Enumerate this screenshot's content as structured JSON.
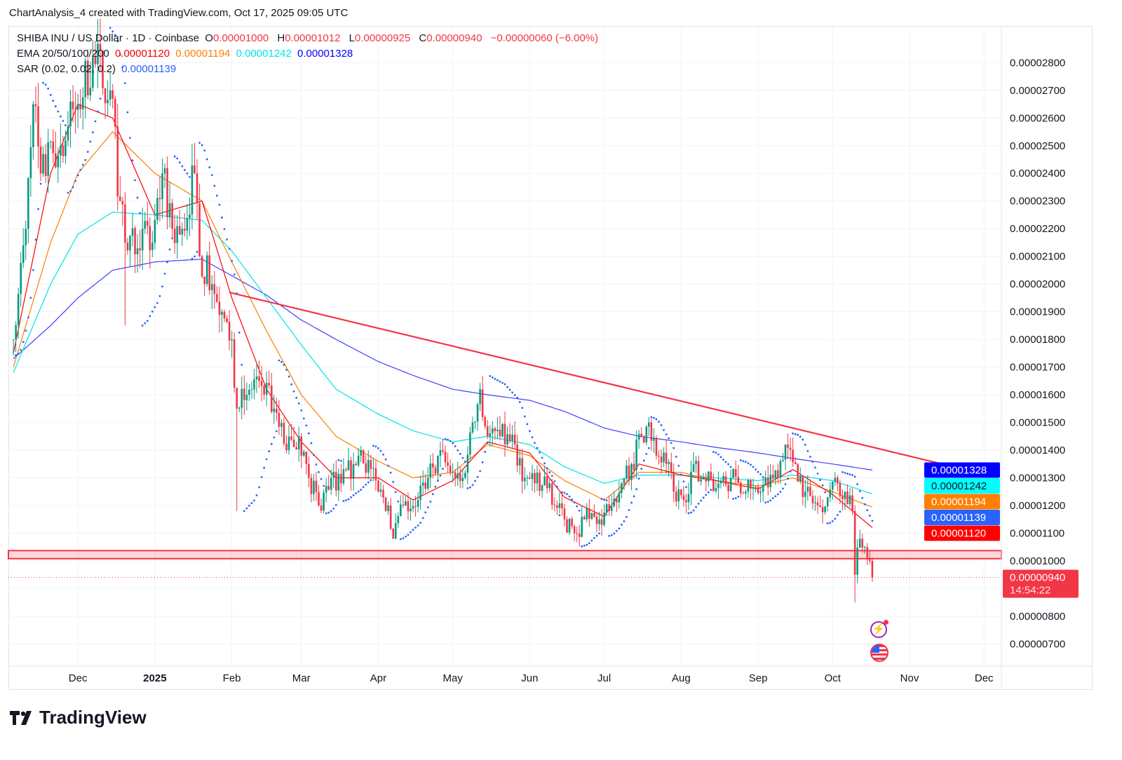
{
  "credit": "ChartAnalysis_4 created with TradingView.com, Oct 17, 2025 09:05 UTC",
  "legend": {
    "symbol": "SHIBA INU / US Dollar · 1D · Coinbase",
    "o_label": "O",
    "o": "0.00001000",
    "h_label": "H",
    "h": "0.00001012",
    "l_label": "L",
    "l": "0.00000925",
    "c_label": "C",
    "c": "0.00000940",
    "change": "−0.00000060 (−6.00%)",
    "ema_label": "EMA 20/50/100/200",
    "ema20": "0.00001120",
    "ema50": "0.00001194",
    "ema100": "0.00001242",
    "ema200": "0.00001328",
    "sar_label": "SAR (0.02, 0.02, 0.2)",
    "sar": "0.00001139"
  },
  "price_tags": [
    {
      "label": "0.00001328",
      "value": 1.328e-05,
      "bg": "#0000ff",
      "fg": "#ffffff"
    },
    {
      "label": "0.00001242",
      "value": 1.242e-05,
      "bg": "#00ffff",
      "fg": "#131722"
    },
    {
      "label": "0.00001194",
      "value": 1.194e-05,
      "bg": "#ff7f00",
      "fg": "#ffffff"
    },
    {
      "label": "0.00001139",
      "value": 1.139e-05,
      "bg": "#2962ff",
      "fg": "#ffffff"
    },
    {
      "label": "0.00001120",
      "value": 1.12e-05,
      "bg": "#ff0000",
      "fg": "#ffffff"
    }
  ],
  "last_price": {
    "label": "0.00000940",
    "countdown": "14:54:22",
    "value": 9.4e-06,
    "bg": "#f23645"
  },
  "logo_text": "TradingView",
  "colors": {
    "up": "#089981",
    "down": "#f23645",
    "ema20": "#ff0000",
    "ema50": "#ff7f00",
    "ema100": "#00e5e5",
    "ema200": "#3f3fff",
    "sar": "#2962ff",
    "trend": "#f23645"
  },
  "chart_data": {
    "type": "candlestick",
    "title": "SHIBA INU / US Dollar · 1D · Coinbase",
    "ylim": [
      6.2e-06,
      2.93e-05
    ],
    "yticks": [
      "0.00000700",
      "0.00000800",
      "0.00000900",
      "0.00001000",
      "0.00001100",
      "0.00001200",
      "0.00001300",
      "0.00001400",
      "0.00001500",
      "0.00001600",
      "0.00001700",
      "0.00001800",
      "0.00001900",
      "0.00002000",
      "0.00002100",
      "0.00002200",
      "0.00002300",
      "0.00002400",
      "0.00002500",
      "0.00002600",
      "0.00002700",
      "0.00002800"
    ],
    "ytick_labels_shown": [
      "0.00000700",
      "0.00000800",
      "0.00001000",
      "0.00001100",
      "0.00001200",
      "0.00001300",
      "0.00001400",
      "0.00001500",
      "0.00001600",
      "0.00001700",
      "0.00001800",
      "0.00001900",
      "0.00002000",
      "0.00002100",
      "0.00002200",
      "0.00002300",
      "0.00002400",
      "0.00002500",
      "0.00002600",
      "0.00002700",
      "0.00002800"
    ],
    "xlim": [
      "2024-11-03",
      "2025-12-08"
    ],
    "xticks": [
      {
        "date": "2024-12-01",
        "label": "Dec",
        "bold": false
      },
      {
        "date": "2025-01-01",
        "label": "2025",
        "bold": true
      },
      {
        "date": "2025-02-01",
        "label": "Feb",
        "bold": false
      },
      {
        "date": "2025-03-01",
        "label": "Mar",
        "bold": false
      },
      {
        "date": "2025-04-01",
        "label": "Apr",
        "bold": false
      },
      {
        "date": "2025-05-01",
        "label": "May",
        "bold": false
      },
      {
        "date": "2025-06-01",
        "label": "Jun",
        "bold": false
      },
      {
        "date": "2025-07-01",
        "label": "Jul",
        "bold": false
      },
      {
        "date": "2025-08-01",
        "label": "Aug",
        "bold": false
      },
      {
        "date": "2025-09-01",
        "label": "Sep",
        "bold": false
      },
      {
        "date": "2025-10-01",
        "label": "Oct",
        "bold": false
      },
      {
        "date": "2025-11-01",
        "label": "Nov",
        "bold": false
      },
      {
        "date": "2025-12-01",
        "label": "Dec",
        "bold": false
      }
    ],
    "close_keypoints_e8": [
      [
        "2024-11-05",
        1800
      ],
      [
        "2024-11-10",
        2200
      ],
      [
        "2024-11-13",
        2650
      ],
      [
        "2024-11-16",
        2400
      ],
      [
        "2024-11-24",
        2500
      ],
      [
        "2024-12-01",
        2650
      ],
      [
        "2024-12-07",
        2820
      ],
      [
        "2024-12-14",
        2700
      ],
      [
        "2024-12-18",
        2300
      ],
      [
        "2024-12-20",
        2150
      ],
      [
        "2024-12-27",
        2200
      ],
      [
        "2024-12-31",
        2150
      ],
      [
        "2025-01-04",
        2400
      ],
      [
        "2025-01-08",
        2200
      ],
      [
        "2025-01-12",
        2200
      ],
      [
        "2025-01-17",
        2400
      ],
      [
        "2025-01-19",
        2100
      ],
      [
        "2025-01-24",
        2000
      ],
      [
        "2025-01-28",
        1900
      ],
      [
        "2025-02-01",
        1800
      ],
      [
        "2025-02-03",
        1550
      ],
      [
        "2025-02-07",
        1600
      ],
      [
        "2025-02-12",
        1650
      ],
      [
        "2025-02-18",
        1550
      ],
      [
        "2025-02-23",
        1400
      ],
      [
        "2025-02-28",
        1450
      ],
      [
        "2025-03-04",
        1300
      ],
      [
        "2025-03-08",
        1200
      ],
      [
        "2025-03-13",
        1300
      ],
      [
        "2025-03-17",
        1280
      ],
      [
        "2025-03-22",
        1350
      ],
      [
        "2025-03-25",
        1400
      ],
      [
        "2025-04-01",
        1250
      ],
      [
        "2025-04-05",
        1200
      ],
      [
        "2025-04-07",
        1080
      ],
      [
        "2025-04-11",
        1200
      ],
      [
        "2025-04-17",
        1220
      ],
      [
        "2025-04-21",
        1300
      ],
      [
        "2025-04-25",
        1380
      ],
      [
        "2025-05-01",
        1320
      ],
      [
        "2025-05-05",
        1300
      ],
      [
        "2025-05-09",
        1500
      ],
      [
        "2025-05-12",
        1620
      ],
      [
        "2025-05-15",
        1450
      ],
      [
        "2025-05-20",
        1450
      ],
      [
        "2025-05-26",
        1420
      ],
      [
        "2025-05-30",
        1300
      ],
      [
        "2025-06-03",
        1280
      ],
      [
        "2025-06-09",
        1280
      ],
      [
        "2025-06-11",
        1200
      ],
      [
        "2025-06-15",
        1150
      ],
      [
        "2025-06-19",
        1100
      ],
      [
        "2025-06-23",
        1150
      ],
      [
        "2025-06-29",
        1150
      ],
      [
        "2025-07-03",
        1180
      ],
      [
        "2025-07-08",
        1280
      ],
      [
        "2025-07-12",
        1350
      ],
      [
        "2025-07-16",
        1450
      ],
      [
        "2025-07-19",
        1500
      ],
      [
        "2025-07-22",
        1380
      ],
      [
        "2025-07-26",
        1350
      ],
      [
        "2025-07-29",
        1250
      ],
      [
        "2025-08-02",
        1220
      ],
      [
        "2025-08-06",
        1350
      ],
      [
        "2025-08-10",
        1300
      ],
      [
        "2025-08-16",
        1280
      ],
      [
        "2025-08-21",
        1300
      ],
      [
        "2025-08-27",
        1250
      ],
      [
        "2025-09-02",
        1250
      ],
      [
        "2025-09-07",
        1300
      ],
      [
        "2025-09-12",
        1420
      ],
      [
        "2025-09-16",
        1350
      ],
      [
        "2025-09-20",
        1250
      ],
      [
        "2025-09-25",
        1200
      ],
      [
        "2025-09-29",
        1230
      ],
      [
        "2025-10-03",
        1280
      ],
      [
        "2025-10-06",
        1250
      ],
      [
        "2025-10-09",
        1180
      ],
      [
        "2025-10-10",
        950
      ],
      [
        "2025-10-12",
        1080
      ],
      [
        "2025-10-14",
        1050
      ],
      [
        "2025-10-16",
        1000
      ],
      [
        "2025-10-17",
        940
      ]
    ],
    "ema_keypoints_e8": {
      "dates": [
        "2024-11-05",
        "2024-11-20",
        "2024-12-01",
        "2024-12-15",
        "2025-01-01",
        "2025-01-20",
        "2025-02-01",
        "2025-02-15",
        "2025-03-01",
        "2025-03-15",
        "2025-04-01",
        "2025-04-15",
        "2025-05-01",
        "2025-05-15",
        "2025-06-01",
        "2025-06-15",
        "2025-07-01",
        "2025-07-15",
        "2025-08-01",
        "2025-08-15",
        "2025-09-01",
        "2025-09-15",
        "2025-10-01",
        "2025-10-17"
      ],
      "ema20": [
        1750,
        2400,
        2650,
        2600,
        2250,
        2300,
        1950,
        1620,
        1430,
        1300,
        1300,
        1220,
        1290,
        1430,
        1390,
        1230,
        1160,
        1350,
        1310,
        1290,
        1260,
        1330,
        1240,
        1120
      ],
      "ema50": [
        1700,
        2150,
        2400,
        2550,
        2400,
        2300,
        2080,
        1830,
        1600,
        1450,
        1360,
        1300,
        1320,
        1420,
        1380,
        1290,
        1220,
        1320,
        1320,
        1290,
        1270,
        1300,
        1250,
        1194
      ],
      "ema100": [
        1680,
        2000,
        2180,
        2260,
        2250,
        2230,
        2120,
        1950,
        1780,
        1620,
        1530,
        1470,
        1430,
        1450,
        1420,
        1340,
        1280,
        1310,
        1310,
        1300,
        1290,
        1310,
        1290,
        1242
      ],
      "ema200": [
        1730,
        1850,
        1950,
        2050,
        2080,
        2090,
        2030,
        1960,
        1870,
        1800,
        1720,
        1670,
        1620,
        1600,
        1580,
        1540,
        1480,
        1450,
        1430,
        1410,
        1390,
        1370,
        1350,
        1328
      ]
    },
    "trendline": {
      "from": [
        "2025-01-31",
        1.97e-05
      ],
      "to": [
        "2025-12-05",
        1.305e-05
      ]
    },
    "support_zone": [
      1.008e-05,
      1.037e-05
    ],
    "current_price": 9.4e-06
  }
}
